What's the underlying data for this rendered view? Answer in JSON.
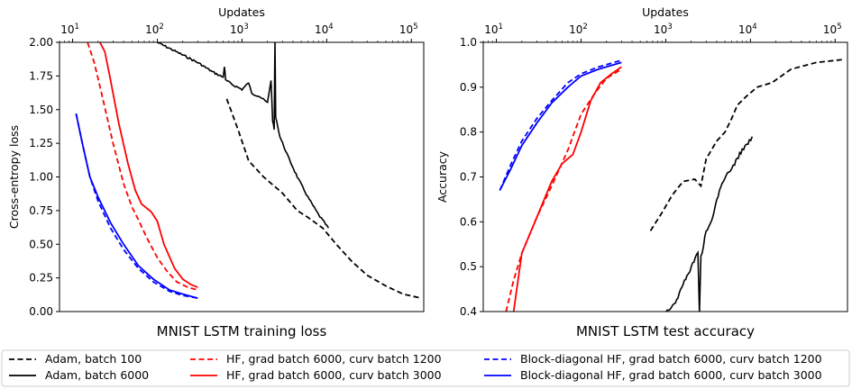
{
  "chart_data": [
    {
      "type": "line",
      "title": "MNIST LSTM training loss",
      "xlabel": "Updates",
      "ylabel": "Cross-entropy loss",
      "x_scale": "log",
      "xlim": [
        7,
        140000
      ],
      "ylim": [
        0.0,
        2.0
      ],
      "x_ticks": [
        {
          "label": "10",
          "exp": "1",
          "value": 10
        },
        {
          "label": "10",
          "exp": "2",
          "value": 100
        },
        {
          "label": "10",
          "exp": "3",
          "value": 1000
        },
        {
          "label": "10",
          "exp": "4",
          "value": 10000
        },
        {
          "label": "10",
          "exp": "5",
          "value": 100000
        }
      ],
      "y_ticks": [
        "0.00",
        "0.25",
        "0.50",
        "0.75",
        "1.00",
        "1.25",
        "1.50",
        "1.75",
        "2.00"
      ],
      "series": [
        {
          "name": "Adam, batch 100",
          "color": "#000000",
          "dash": true,
          "points": [
            [
              660,
              1.58
            ],
            [
              900,
              1.35
            ],
            [
              1200,
              1.12
            ],
            [
              1800,
              1.0
            ],
            [
              3000,
              0.88
            ],
            [
              4500,
              0.75
            ],
            [
              6000,
              0.7
            ],
            [
              9000,
              0.62
            ],
            [
              13000,
              0.5
            ],
            [
              20000,
              0.37
            ],
            [
              30000,
              0.27
            ],
            [
              50000,
              0.19
            ],
            [
              80000,
              0.13
            ],
            [
              130000,
              0.1
            ]
          ]
        },
        {
          "name": "Adam, batch 6000",
          "color": "#000000",
          "dash": false,
          "noisy": true,
          "points": [
            [
              100,
              2.0
            ],
            [
              180,
              1.92
            ],
            [
              300,
              1.85
            ],
            [
              450,
              1.78
            ],
            [
              600,
              1.74
            ],
            [
              620,
              1.82
            ],
            [
              640,
              1.72
            ],
            [
              800,
              1.68
            ],
            [
              1000,
              1.65
            ],
            [
              1200,
              1.7
            ],
            [
              1300,
              1.62
            ],
            [
              1600,
              1.6
            ],
            [
              2000,
              1.55
            ],
            [
              2200,
              1.72
            ],
            [
              2300,
              1.42
            ],
            [
              2400,
              1.35
            ],
            [
              2450,
              2.0
            ],
            [
              2500,
              1.45
            ],
            [
              2800,
              1.3
            ],
            [
              3500,
              1.15
            ],
            [
              4500,
              1.0
            ],
            [
              6000,
              0.85
            ],
            [
              8000,
              0.72
            ],
            [
              10500,
              0.62
            ]
          ]
        },
        {
          "name": "HF, grad batch 6000, curv batch 1200",
          "color": "#ff0000",
          "dash": true,
          "points": [
            [
              15,
              2.0
            ],
            [
              18,
              1.85
            ],
            [
              22,
              1.62
            ],
            [
              30,
              1.25
            ],
            [
              40,
              0.95
            ],
            [
              50,
              0.78
            ],
            [
              60,
              0.68
            ],
            [
              75,
              0.55
            ],
            [
              100,
              0.4
            ],
            [
              130,
              0.3
            ],
            [
              170,
              0.22
            ],
            [
              230,
              0.18
            ],
            [
              300,
              0.16
            ]
          ]
        },
        {
          "name": "HF, grad batch 6000, curv batch 3000",
          "color": "#ff0000",
          "dash": false,
          "points": [
            [
              21,
              2.0
            ],
            [
              24,
              1.93
            ],
            [
              28,
              1.72
            ],
            [
              35,
              1.4
            ],
            [
              45,
              1.1
            ],
            [
              55,
              0.9
            ],
            [
              65,
              0.8
            ],
            [
              85,
              0.74
            ],
            [
              100,
              0.67
            ],
            [
              120,
              0.5
            ],
            [
              160,
              0.32
            ],
            [
              200,
              0.24
            ],
            [
              250,
              0.2
            ],
            [
              300,
              0.18
            ]
          ]
        },
        {
          "name": "Block-diagonal HF, grad batch 6000, curv batch 1200",
          "color": "#0000ff",
          "dash": true,
          "points": [
            [
              11,
              1.47
            ],
            [
              13,
              1.25
            ],
            [
              16,
              1.0
            ],
            [
              20,
              0.82
            ],
            [
              28,
              0.62
            ],
            [
              40,
              0.46
            ],
            [
              60,
              0.32
            ],
            [
              90,
              0.22
            ],
            [
              140,
              0.15
            ],
            [
              200,
              0.12
            ],
            [
              300,
              0.1
            ]
          ]
        },
        {
          "name": "Block-diagonal HF, grad batch 6000, curv batch 3000",
          "color": "#0000ff",
          "dash": false,
          "points": [
            [
              11,
              1.47
            ],
            [
              13,
              1.25
            ],
            [
              16,
              1.0
            ],
            [
              20,
              0.85
            ],
            [
              28,
              0.66
            ],
            [
              40,
              0.5
            ],
            [
              60,
              0.34
            ],
            [
              90,
              0.24
            ],
            [
              140,
              0.16
            ],
            [
              200,
              0.13
            ],
            [
              300,
              0.1
            ]
          ]
        }
      ]
    },
    {
      "type": "line",
      "title": "MNIST LSTM test accuracy",
      "xlabel": "Updates",
      "ylabel": "Accuracy",
      "x_scale": "log",
      "xlim": [
        7,
        140000
      ],
      "ylim": [
        0.4,
        1.0
      ],
      "x_ticks": [
        {
          "label": "10",
          "exp": "1",
          "value": 10
        },
        {
          "label": "10",
          "exp": "2",
          "value": 100
        },
        {
          "label": "10",
          "exp": "3",
          "value": 1000
        },
        {
          "label": "10",
          "exp": "4",
          "value": 10000
        },
        {
          "label": "10",
          "exp": "5",
          "value": 100000
        }
      ],
      "y_ticks": [
        "0.4",
        "0.5",
        "0.6",
        "0.7",
        "0.8",
        "0.9",
        "1.0"
      ],
      "series": [
        {
          "name": "Adam, batch 100",
          "color": "#000000",
          "dash": true,
          "points": [
            [
              660,
              0.58
            ],
            [
              900,
              0.62
            ],
            [
              1200,
              0.66
            ],
            [
              1600,
              0.69
            ],
            [
              2200,
              0.695
            ],
            [
              2600,
              0.68
            ],
            [
              3000,
              0.74
            ],
            [
              4000,
              0.78
            ],
            [
              5000,
              0.8
            ],
            [
              6000,
              0.83
            ],
            [
              7000,
              0.86
            ],
            [
              9000,
              0.88
            ],
            [
              12000,
              0.9
            ],
            [
              18000,
              0.91
            ],
            [
              30000,
              0.94
            ],
            [
              60000,
              0.955
            ],
            [
              130000,
              0.962
            ]
          ]
        },
        {
          "name": "Adam, batch 6000",
          "color": "#000000",
          "dash": false,
          "noisy": true,
          "points": [
            [
              1000,
              0.4
            ],
            [
              1300,
              0.42
            ],
            [
              1600,
              0.46
            ],
            [
              2000,
              0.5
            ],
            [
              2400,
              0.53
            ],
            [
              2500,
              0.4
            ],
            [
              2600,
              0.52
            ],
            [
              3000,
              0.58
            ],
            [
              3500,
              0.6
            ],
            [
              4000,
              0.65
            ],
            [
              5000,
              0.7
            ],
            [
              6500,
              0.73
            ],
            [
              8000,
              0.76
            ],
            [
              10500,
              0.79
            ]
          ]
        },
        {
          "name": "HF, grad batch 6000, curv batch 1200",
          "color": "#ff0000",
          "dash": true,
          "points": [
            [
              13,
              0.4
            ],
            [
              16,
              0.47
            ],
            [
              20,
              0.53
            ],
            [
              30,
              0.61
            ],
            [
              45,
              0.68
            ],
            [
              70,
              0.76
            ],
            [
              100,
              0.84
            ],
            [
              150,
              0.89
            ],
            [
              200,
              0.92
            ],
            [
              300,
              0.94
            ]
          ]
        },
        {
          "name": "HF, grad batch 6000, curv batch 3000",
          "color": "#ff0000",
          "dash": false,
          "points": [
            [
              16,
              0.4
            ],
            [
              20,
              0.53
            ],
            [
              30,
              0.61
            ],
            [
              45,
              0.69
            ],
            [
              60,
              0.73
            ],
            [
              80,
              0.75
            ],
            [
              100,
              0.8
            ],
            [
              130,
              0.87
            ],
            [
              170,
              0.91
            ],
            [
              230,
              0.93
            ],
            [
              300,
              0.945
            ]
          ]
        },
        {
          "name": "Block-diagonal HF, grad batch 6000, curv batch 1200",
          "color": "#0000ff",
          "dash": true,
          "points": [
            [
              11,
              0.67
            ],
            [
              15,
              0.73
            ],
            [
              20,
              0.78
            ],
            [
              30,
              0.83
            ],
            [
              45,
              0.87
            ],
            [
              70,
              0.91
            ],
            [
              100,
              0.93
            ],
            [
              160,
              0.945
            ],
            [
              300,
              0.96
            ]
          ]
        },
        {
          "name": "Block-diagonal HF, grad batch 6000, curv batch 3000",
          "color": "#0000ff",
          "dash": false,
          "points": [
            [
              11,
              0.67
            ],
            [
              15,
              0.72
            ],
            [
              20,
              0.77
            ],
            [
              30,
              0.82
            ],
            [
              45,
              0.865
            ],
            [
              70,
              0.9
            ],
            [
              100,
              0.925
            ],
            [
              160,
              0.94
            ],
            [
              300,
              0.955
            ]
          ]
        }
      ]
    }
  ],
  "legend_labels": [
    "Adam, batch 100",
    "Adam, batch 6000",
    "HF, grad batch 6000, curv batch 1200",
    "HF, grad batch 6000, curv batch 3000",
    "Block-diagonal HF, grad batch 6000, curv batch 1200",
    "Block-diagonal HF, grad batch 6000, curv batch 3000"
  ],
  "legend_placement": "bottom"
}
